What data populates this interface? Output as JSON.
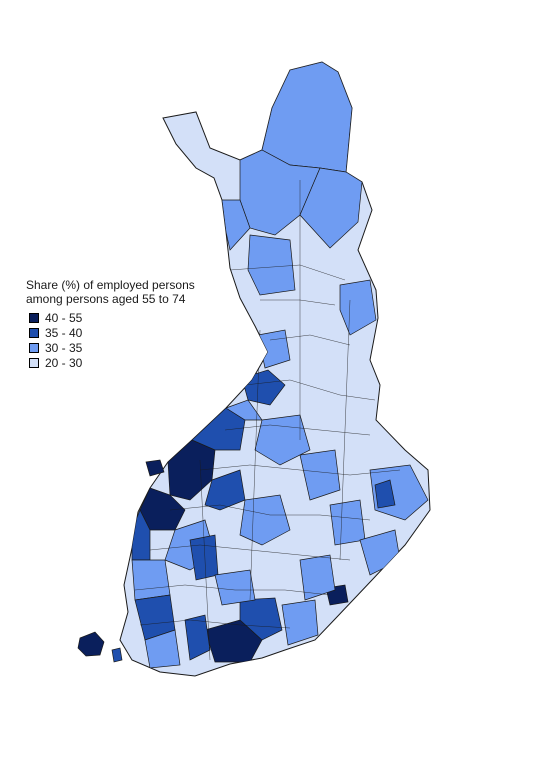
{
  "legend": {
    "title_line1": "Share (%) of employed persons",
    "title_line2": "among persons aged 55 to 74",
    "classes": [
      {
        "label": "40 - 55",
        "color": "#0a1f5c"
      },
      {
        "label": "35 - 40",
        "color": "#1f4fae"
      },
      {
        "label": "30 - 35",
        "color": "#6f9cf2"
      },
      {
        "label": "20 - 30",
        "color": "#d3e0f8"
      }
    ]
  }
}
